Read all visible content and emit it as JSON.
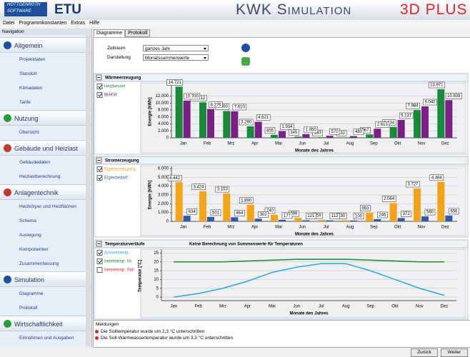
{
  "header": {
    "logo_line1": "HOTTGENROTH",
    "logo_line2": "SOFTWARE",
    "brand": "ETU",
    "product": "KWK Simulation",
    "product_suffix": "3D PLUS"
  },
  "menu": [
    "Datei",
    "Programmkonstanten",
    "Extras",
    "Hilfe"
  ],
  "navigation": {
    "title": "Navigation",
    "sections": [
      {
        "title": "Allgemein",
        "items": [
          "Projektdaten",
          "Standort",
          "Klimadaten",
          "Tarife"
        ]
      },
      {
        "title": "Nutzung",
        "items": [
          "Übersicht"
        ]
      },
      {
        "title": "Gebäude und Heizlast",
        "items": [
          "Gebäudedaten",
          "Heizlastberechnung"
        ]
      },
      {
        "title": "Anlagentechnik",
        "items": [
          "Heizkörper und Heizflächen",
          "Schema",
          "Auslegung",
          "Komponenten",
          "Zusammenfassung"
        ]
      },
      {
        "title": "Simulation",
        "items": [
          "Diagramme",
          "Protokoll"
        ]
      },
      {
        "title": "Wirtschaftlichkeit",
        "items": [
          "Einnahmen und Ausgaben"
        ]
      }
    ]
  },
  "tabs": [
    "Diagramme",
    "Protokoll"
  ],
  "form": {
    "fields": [
      {
        "label": "Zeitraum",
        "value": "ganzes Jahr"
      },
      {
        "label": "Darstellung",
        "value": "Monatssummenwerte"
      }
    ]
  },
  "chart_data": [
    {
      "type": "bar",
      "title": "Wärmeerzeugung",
      "x_label": "Monate des Jahres",
      "y_label": "Energie [kWh]",
      "categories": [
        "Jan",
        "Feb",
        "Mrz",
        "Apr",
        "Mai",
        "Jun",
        "Jul",
        "Aug",
        "Sep",
        "Okt",
        "Nov",
        "Dez"
      ],
      "series": [
        {
          "name": "Heizkessel",
          "color": "#1a8a3a",
          "checked": true,
          "values": [
            14721,
            10212,
            7700,
            3290,
            855,
            345,
            183,
            132,
            967,
            3134,
            7984,
            13971
          ],
          "value_labels": [
            "14.721",
            "10.212",
            "7.700",
            "3.290",
            "855",
            "345",
            "183",
            "132",
            "967",
            "3.134",
            "7.984",
            "13.971"
          ]
        },
        {
          "name": "BHKW",
          "color": "#7a1f86",
          "checked": true,
          "values": [
            10700,
            8276,
            7610,
            4621,
            1934,
            1050,
            570,
            480,
            2613,
            5137,
            9040,
            10839
          ],
          "value_labels": [
            "10.700",
            "8.276",
            "7.610",
            "4.621",
            "1.934",
            "1.050",
            "570",
            "480",
            "2.613",
            "5.137",
            "9.040",
            "10.839"
          ]
        }
      ],
      "ylim": [
        0,
        15000
      ],
      "yticks": [
        0,
        {
          "value": 2000,
          "label": "2.000"
        },
        {
          "value": 4000,
          "label": "4.000"
        },
        {
          "value": 6000,
          "label": "6.000"
        },
        {
          "value": 8000,
          "label": "8.000"
        },
        {
          "value": 10000,
          "label": "10.000"
        },
        {
          "value": 12000,
          "label": "12.000"
        }
      ],
      "grid": true
    },
    {
      "type": "bar",
      "title": "Stromerzeugung",
      "x_label": "Monate des Jahres",
      "y_label": "Energie [kWh]",
      "categories": [
        "Jan",
        "Feb",
        "Mrz",
        "Apr",
        "Mai",
        "Jun",
        "Jul",
        "Aug",
        "Sep",
        "Okt",
        "Nov",
        "Dez"
      ],
      "series": [
        {
          "name": "Eigenerzeugung",
          "color": "#f5a31a",
          "checked": true,
          "values": [
            4442,
            3424,
            3153,
            1890,
            740,
            398,
            159,
            130,
            993,
            2064,
            3727,
            4484
          ],
          "value_labels": [
            "4.442",
            "3.424",
            "3.153",
            "1.890",
            "740",
            "398",
            "159",
            "130",
            "993",
            "2.064",
            "3.727",
            "4.484"
          ]
        },
        {
          "name": "Eigenbedarf",
          "color": "#2e5aa8",
          "checked": true,
          "values": [
            634,
            501,
            464,
            302,
            177,
            121,
            112,
            100,
            246,
            372,
            560,
            656
          ]
        }
      ],
      "ylim": [
        0,
        6000
      ],
      "yticks": [
        0,
        {
          "value": 1000,
          "label": "1.000"
        },
        {
          "value": 2000,
          "label": "2.000"
        },
        {
          "value": 3000,
          "label": "3.000"
        },
        {
          "value": 4000,
          "label": "4.000"
        },
        {
          "value": 5000,
          "label": "5.000"
        },
        {
          "value": 6000,
          "label": "6.000"
        }
      ],
      "grid": true
    },
    {
      "type": "line",
      "title": "Temperaturverläufe",
      "subtitle": "Keine Berechnung von Summenwerte für Temperaturen",
      "x_label": "Monate des Jahres",
      "y_label": "Temperatur [°C]",
      "categories": [
        "Jan",
        "Feb",
        "Mrz",
        "Apr",
        "Mai",
        "Jun",
        "Jul",
        "Aug",
        "Sep",
        "Okt",
        "Nov",
        "Dez"
      ],
      "series": [
        {
          "name": "Aussentemp.",
          "color": "#2aa7d8",
          "checked": true,
          "values": [
            0,
            2,
            5,
            9,
            14,
            17,
            19,
            19,
            15,
            10,
            5,
            1
          ]
        },
        {
          "name": "Innentemp. Ist",
          "color": "#1a8a3a",
          "checked": true,
          "values": [
            20,
            20,
            20,
            20.5,
            21,
            21.5,
            21.5,
            21.5,
            21,
            20.5,
            20,
            20
          ]
        },
        {
          "name": "Innentemp. Soll",
          "color": "#d9262b",
          "checked": false
        }
      ],
      "ylim": [
        -2,
        26
      ],
      "yticks": [
        0,
        5,
        10,
        15,
        20,
        25
      ],
      "grid": true
    }
  ],
  "messages": {
    "title": "Meldungen",
    "items": [
      "Die Solltemperatur wurde um 2,3 °C unterschritten",
      "Die Soll-Warmwassertemperatur wurde um 3,3 °C unterschritten"
    ]
  },
  "buttons": [
    "Zurück",
    "Weiter"
  ]
}
